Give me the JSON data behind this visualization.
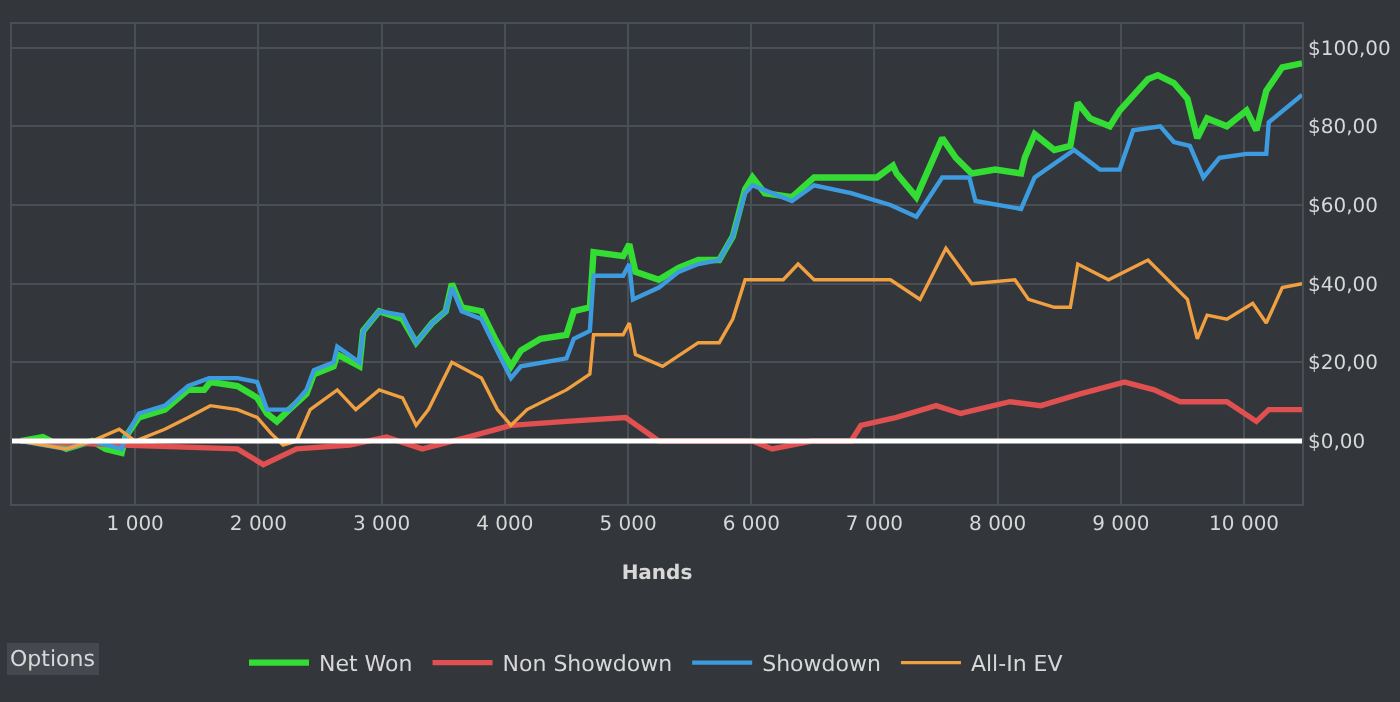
{
  "chart_data": {
    "type": "line",
    "xlabel": "Hands",
    "xlim": [
      0,
      10470
    ],
    "ylim": [
      -16,
      106
    ],
    "xticks": [
      {
        "value": 1000,
        "label": "1 000"
      },
      {
        "value": 2000,
        "label": "2 000"
      },
      {
        "value": 3000,
        "label": "3 000"
      },
      {
        "value": 4000,
        "label": "4 000"
      },
      {
        "value": 5000,
        "label": "5 000"
      },
      {
        "value": 6000,
        "label": "6 000"
      },
      {
        "value": 7000,
        "label": "7 000"
      },
      {
        "value": 8000,
        "label": "8 000"
      },
      {
        "value": 9000,
        "label": "9 000"
      },
      {
        "value": 10000,
        "label": "10 000"
      }
    ],
    "yticks": [
      {
        "value": 0,
        "label": "$0,00"
      },
      {
        "value": 20,
        "label": "$20,00"
      },
      {
        "value": 40,
        "label": "$40,00"
      },
      {
        "value": 60,
        "label": "$60,00"
      },
      {
        "value": 80,
        "label": "$80,00"
      },
      {
        "value": 100,
        "label": "$100,00"
      }
    ],
    "grid": true,
    "legend": "bottom",
    "ref_lines": [
      {
        "axis": "y",
        "value": 0,
        "label": null,
        "color": "#ffffff"
      }
    ],
    "annotations": [
      "Options"
    ],
    "series": [
      {
        "name": "Net Won",
        "color": "#33dd33",
        "x": [
          70,
          250,
          440,
          650,
          760,
          890,
          920,
          1030,
          1240,
          1430,
          1560,
          1610,
          1830,
          1990,
          2070,
          2150,
          2250,
          2390,
          2450,
          2610,
          2640,
          2820,
          2850,
          2980,
          3170,
          3280,
          3410,
          3520,
          3570,
          3650,
          3810,
          3920,
          4050,
          4130,
          4290,
          4500,
          4560,
          4690,
          4720,
          4960,
          5010,
          5060,
          5250,
          5410,
          5570,
          5740,
          5850,
          5950,
          6010,
          6110,
          6330,
          6510,
          6810,
          7020,
          7150,
          7180,
          7340,
          7550,
          7660,
          7790,
          7980,
          8190,
          8220,
          8300,
          8460,
          8590,
          8650,
          8750,
          8910,
          8990,
          9220,
          9300,
          9430,
          9540,
          9620,
          9700,
          9860,
          10020,
          10100,
          10180,
          10310,
          10470
        ],
        "values": [
          0,
          1,
          -2,
          0,
          -2,
          -3,
          1,
          6,
          8,
          13,
          13,
          15,
          14,
          11,
          7,
          5,
          8,
          12,
          17,
          19,
          22,
          19,
          28,
          33,
          31,
          25,
          30,
          33,
          40,
          34,
          33,
          26,
          19,
          23,
          26,
          27,
          33,
          34,
          48,
          47,
          50,
          43,
          41,
          44,
          46,
          46,
          52,
          64,
          67,
          63,
          62,
          67,
          67,
          67,
          70,
          68,
          62,
          77,
          72,
          68,
          69,
          68,
          72,
          78,
          74,
          75,
          86,
          82,
          80,
          84,
          92,
          93,
          91,
          87,
          77,
          82,
          80,
          84,
          79,
          89,
          95,
          96
        ]
      },
      {
        "name": "Non Showdown",
        "color": "#e05050",
        "x": [
          70,
          900,
          1830,
          2040,
          2310,
          2740,
          3040,
          3330,
          3700,
          4050,
          4500,
          4980,
          5250,
          5570,
          6010,
          6170,
          6490,
          6810,
          6890,
          7180,
          7500,
          7700,
          8100,
          8350,
          8670,
          9030,
          9270,
          9480,
          9860,
          10100,
          10200,
          10470
        ],
        "values": [
          0,
          -1,
          -2,
          -6,
          -2,
          -1,
          1,
          -2,
          1,
          4,
          5,
          6,
          0,
          0,
          0,
          -2,
          0,
          0,
          4,
          6,
          9,
          7,
          10,
          9,
          12,
          15,
          13,
          10,
          10,
          5,
          8,
          8
        ]
      },
      {
        "name": "Showdown",
        "color": "#3d9be0",
        "x": [
          70,
          440,
          650,
          890,
          920,
          1030,
          1240,
          1430,
          1600,
          1830,
          1990,
          2070,
          2250,
          2390,
          2450,
          2610,
          2640,
          2820,
          2850,
          2980,
          3170,
          3280,
          3410,
          3520,
          3570,
          3650,
          3810,
          3920,
          4050,
          4130,
          4500,
          4560,
          4690,
          4720,
          4960,
          5010,
          5040,
          5250,
          5410,
          5570,
          5740,
          5850,
          5950,
          6010,
          6330,
          6510,
          6810,
          7130,
          7340,
          7550,
          7770,
          7820,
          8190,
          8300,
          8620,
          8830,
          8990,
          9100,
          9320,
          9430,
          9560,
          9670,
          9800,
          10020,
          10180,
          10200,
          10470
        ],
        "values": [
          0,
          -2,
          0,
          -2,
          1,
          7,
          9,
          14,
          16,
          16,
          15,
          8,
          8,
          13,
          18,
          20,
          24,
          20,
          28,
          33,
          32,
          25,
          30,
          33,
          39,
          33,
          31,
          24,
          16,
          19,
          21,
          26,
          28,
          42,
          42,
          45,
          36,
          39,
          43,
          45,
          46,
          52,
          63,
          65,
          61,
          65,
          63,
          60,
          57,
          67,
          67,
          61,
          59,
          67,
          74,
          69,
          69,
          79,
          80,
          76,
          75,
          67,
          72,
          73,
          73,
          81,
          88
        ]
      },
      {
        "name": "All-In EV",
        "color": "#f0a040",
        "x": [
          70,
          440,
          650,
          870,
          1000,
          1240,
          1430,
          1610,
          1830,
          1990,
          2100,
          2200,
          2310,
          2420,
          2640,
          2790,
          2980,
          3170,
          3280,
          3380,
          3570,
          3810,
          3940,
          4050,
          4180,
          4500,
          4690,
          4720,
          4960,
          5010,
          5060,
          5280,
          5570,
          5740,
          5850,
          5950,
          6260,
          6380,
          6510,
          7130,
          7370,
          7580,
          7790,
          8140,
          8250,
          8460,
          8590,
          8650,
          8900,
          9220,
          9540,
          9620,
          9700,
          9860,
          10070,
          10180,
          10310,
          10470
        ],
        "values": [
          0,
          -2,
          0,
          3,
          0,
          3,
          6,
          9,
          8,
          6,
          2,
          -1,
          0,
          8,
          13,
          8,
          13,
          11,
          4,
          8,
          20,
          16,
          8,
          4,
          8,
          13,
          17,
          27,
          27,
          30,
          22,
          19,
          25,
          25,
          31,
          41,
          41,
          45,
          41,
          41,
          36,
          49,
          40,
          41,
          36,
          34,
          34,
          45,
          41,
          46,
          36,
          26,
          32,
          31,
          35,
          30,
          39,
          40
        ]
      }
    ]
  }
}
